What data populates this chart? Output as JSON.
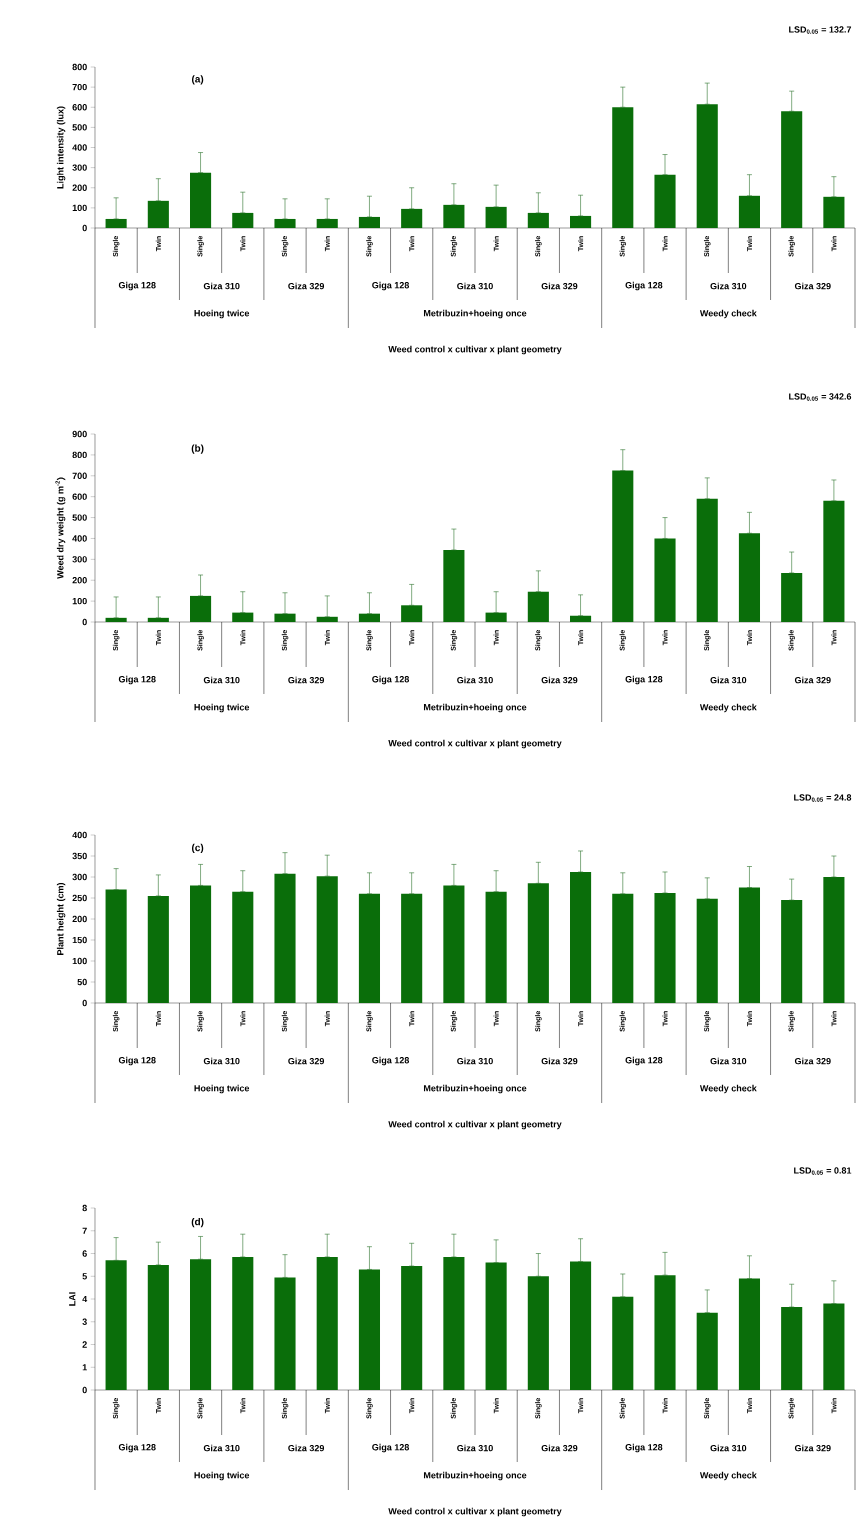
{
  "chart_data": [
    {
      "type": "bar",
      "title": "(a)",
      "subtitle": "LSD$_{0.05}$ = 132.7",
      "xlabel": "Weed control x cultivar x plant geometry",
      "ylabel": "Light intensity (lux)",
      "categories": [
        "Single",
        "Twin",
        "Single",
        "Twin",
        "Single",
        "Twin",
        "Single",
        "Twin",
        "Single",
        "Twin",
        "Single",
        "Twin",
        "Single",
        "Twin",
        "Single",
        "Twin",
        "Single",
        "Twin"
      ],
      "values": [
        45,
        135,
        275,
        75,
        45,
        45,
        55,
        95,
        115,
        105,
        75,
        60,
        600,
        265,
        615,
        160,
        580,
        155
      ],
      "errors": [
        [
          45,
          150
        ],
        [
          135,
          245
        ],
        [
          275,
          375
        ],
        [
          75,
          178
        ],
        [
          45,
          145
        ],
        [
          45,
          145
        ],
        [
          55,
          158
        ],
        [
          95,
          200
        ],
        [
          115,
          220
        ],
        [
          105,
          213
        ],
        [
          75,
          175
        ],
        [
          60,
          163
        ],
        [
          600,
          700
        ],
        [
          265,
          365
        ],
        [
          615,
          720
        ],
        [
          160,
          265
        ],
        [
          580,
          680
        ],
        [
          155,
          255
        ]
      ],
      "color": "#0a6e0a",
      "ylim": [
        0,
        800
      ],
      "yticks": [
        0,
        100,
        200,
        300,
        400,
        500,
        600,
        700,
        800
      ],
      "annotations": [
        "Giga 128",
        "Giza 310",
        "Giza 329",
        "Giga 128",
        "Giza 310",
        "Giza 329",
        "Giga 128",
        "Giza 310",
        "Giza 329",
        "Hoeing twice",
        "Metribuzin+hoeing once",
        "Weedy check"
      ]
    },
    {
      "type": "bar",
      "title": "(b)",
      "subtitle": "LSD$_{0.05}$ = 342.6",
      "xlabel": "Weed control x cultivar x plant geometry",
      "ylabel": "Weed dry weight (g m$^{-2}$)",
      "categories": [
        "Single",
        "Twin",
        "Single",
        "Twin",
        "Single",
        "Twin",
        "Single",
        "Twin",
        "Single",
        "Twin",
        "Single",
        "Twin",
        "Single",
        "Twin",
        "Single",
        "Twin",
        "Single",
        "Twin"
      ],
      "values": [
        20,
        20,
        125,
        45,
        40,
        25,
        40,
        80,
        345,
        45,
        145,
        30,
        725,
        400,
        590,
        425,
        235,
        580
      ],
      "errors": [
        [
          20,
          120
        ],
        [
          20,
          120
        ],
        [
          125,
          225
        ],
        [
          45,
          145
        ],
        [
          40,
          140
        ],
        [
          25,
          125
        ],
        [
          40,
          140
        ],
        [
          80,
          180
        ],
        [
          345,
          445
        ],
        [
          45,
          145
        ],
        [
          145,
          245
        ],
        [
          30,
          130
        ],
        [
          725,
          825
        ],
        [
          400,
          500
        ],
        [
          590,
          690
        ],
        [
          425,
          525
        ],
        [
          235,
          335
        ],
        [
          580,
          680
        ]
      ],
      "color": "#0a6e0a",
      "ylim": [
        0,
        900
      ],
      "yticks": [
        0,
        100,
        200,
        300,
        400,
        500,
        600,
        700,
        800,
        900
      ],
      "annotations": [
        "Giga 128",
        "Giza 310",
        "Giza 329",
        "Giga 128",
        "Giza 310",
        "Giza 329",
        "Giga 128",
        "Giza 310",
        "Giza 329",
        "Hoeing twice",
        "Metribuzin+hoeing once",
        "Weedy check"
      ]
    },
    {
      "type": "bar",
      "title": "(c)",
      "subtitle": "LSD$_{0.05}$ = 24.8",
      "xlabel": "Weed control x cultivar x plant geometry",
      "ylabel": "Plant height (cm)",
      "categories": [
        "Single",
        "Twin",
        "Single",
        "Twin",
        "Single",
        "Twin",
        "Single",
        "Twin",
        "Single",
        "Twin",
        "Single",
        "Twin",
        "Single",
        "Twin",
        "Single",
        "Twin",
        "Single",
        "Twin"
      ],
      "values": [
        270,
        255,
        280,
        265,
        308,
        302,
        260,
        260,
        280,
        265,
        285,
        312,
        260,
        262,
        248,
        275,
        245,
        300
      ],
      "errors": [
        [
          270,
          320
        ],
        [
          255,
          305
        ],
        [
          280,
          330
        ],
        [
          265,
          315
        ],
        [
          308,
          358
        ],
        [
          302,
          352
        ],
        [
          260,
          310
        ],
        [
          260,
          310
        ],
        [
          280,
          330
        ],
        [
          265,
          315
        ],
        [
          285,
          335
        ],
        [
          312,
          362
        ],
        [
          260,
          310
        ],
        [
          262,
          312
        ],
        [
          248,
          298
        ],
        [
          275,
          325
        ],
        [
          245,
          295
        ],
        [
          300,
          350
        ]
      ],
      "color": "#0a6e0a",
      "ylim": [
        0,
        400
      ],
      "yticks": [
        0,
        50,
        100,
        150,
        200,
        250,
        300,
        350,
        400
      ],
      "annotations": [
        "Giga 128",
        "Giza 310",
        "Giza 329",
        "Giga 128",
        "Giza 310",
        "Giza 329",
        "Giga 128",
        "Giza 310",
        "Giza 329",
        "Hoeing twice",
        "Metribuzin+hoeing once",
        "Weedy check"
      ]
    },
    {
      "type": "bar",
      "title": "(d)",
      "subtitle": "LSD$_{0.05}$ = 0.81",
      "xlabel": "Weed control x cultivar x plant geometry",
      "ylabel": "LAI",
      "categories": [
        "Single",
        "Twin",
        "Single",
        "Twin",
        "Single",
        "Twin",
        "Single",
        "Twin",
        "Single",
        "Twin",
        "Single",
        "Twin",
        "Single",
        "Twin",
        "Single",
        "Twin",
        "Single",
        "Twin"
      ],
      "values": [
        5.7,
        5.5,
        5.75,
        5.85,
        4.95,
        5.85,
        5.3,
        5.45,
        5.85,
        5.6,
        5.0,
        5.65,
        4.1,
        5.05,
        3.4,
        4.9,
        3.65,
        3.8
      ],
      "errors": [
        [
          5.7,
          6.7
        ],
        [
          5.5,
          6.5
        ],
        [
          5.75,
          6.75
        ],
        [
          5.85,
          6.85
        ],
        [
          4.95,
          5.95
        ],
        [
          5.85,
          6.85
        ],
        [
          5.3,
          6.3
        ],
        [
          5.45,
          6.45
        ],
        [
          5.85,
          6.85
        ],
        [
          5.6,
          6.6
        ],
        [
          5.0,
          6.0
        ],
        [
          5.65,
          6.65
        ],
        [
          4.1,
          5.1
        ],
        [
          5.05,
          6.05
        ],
        [
          3.4,
          4.4
        ],
        [
          4.9,
          5.9
        ],
        [
          3.65,
          4.65
        ],
        [
          3.8,
          4.8
        ]
      ],
      "color": "#0a6e0a",
      "ylim": [
        0,
        8
      ],
      "yticks": [
        0,
        1,
        2,
        3,
        4,
        5,
        6,
        7,
        8
      ],
      "annotations": [
        "Giga 128",
        "Giza 310",
        "Giza 329",
        "Giga 128",
        "Giza 310",
        "Giza 329",
        "Giga 128",
        "Giza 310",
        "Giza 329",
        "Hoeing twice",
        "Metribuzin+hoeing once",
        "Weedy check"
      ]
    }
  ]
}
